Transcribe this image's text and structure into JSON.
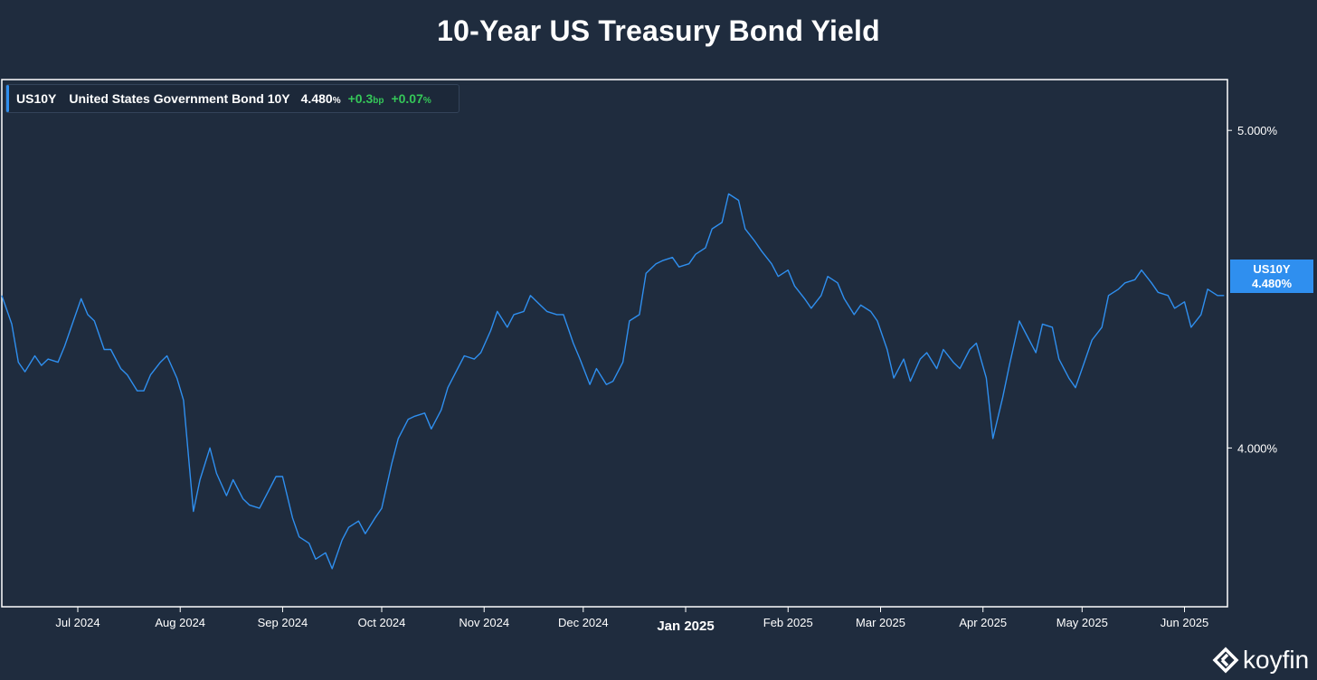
{
  "title": "10-Year US Treasury Bond Yield",
  "legend": {
    "symbol": "US10Y",
    "name": "United States Government Bond 10Y",
    "value": "4.480",
    "value_unit": "%",
    "change_bp": "+0.3",
    "change_bp_unit": "bp",
    "change_pct": "+0.07",
    "change_pct_unit": "%"
  },
  "price_tag": {
    "symbol": "US10Y",
    "value": "4.480%"
  },
  "brand": "koyfin",
  "colors": {
    "line": "#2f8fef",
    "positive": "#35c759",
    "background": "#1f2c3e",
    "frame": "#ffffff"
  },
  "chart_data": {
    "type": "line",
    "title": "10-Year US Treasury Bond Yield",
    "xlabel": "",
    "ylabel": "",
    "ylim": [
      3.5,
      5.16
    ],
    "y_ticks": [
      "5.000%",
      "4.000%"
    ],
    "y_tick_values": [
      5.0,
      4.0
    ],
    "x_ticks": [
      "Jul 2024",
      "Aug 2024",
      "Sep 2024",
      "Oct 2024",
      "Nov 2024",
      "Dec 2024",
      "Jan 2025",
      "Feb 2025",
      "Mar 2025",
      "Apr 2025",
      "May 2025",
      "Jun 2025"
    ],
    "x_tick_dates": [
      "2024-07-01",
      "2024-08-01",
      "2024-09-01",
      "2024-10-01",
      "2024-11-01",
      "2024-12-01",
      "2025-01-01",
      "2025-02-01",
      "2025-03-01",
      "2025-04-01",
      "2025-05-01",
      "2025-06-01"
    ],
    "x_range": [
      "2024-06-08",
      "2025-06-14"
    ],
    "bold_tick": "Jan 2025",
    "grid": false,
    "series": [
      {
        "name": "US10Y",
        "x": [
          "2024-06-08",
          "2024-06-11",
          "2024-06-13",
          "2024-06-15",
          "2024-06-18",
          "2024-06-20",
          "2024-06-22",
          "2024-06-25",
          "2024-06-27",
          "2024-06-29",
          "2024-07-02",
          "2024-07-04",
          "2024-07-06",
          "2024-07-09",
          "2024-07-11",
          "2024-07-14",
          "2024-07-16",
          "2024-07-19",
          "2024-07-21",
          "2024-07-23",
          "2024-07-26",
          "2024-07-28",
          "2024-07-31",
          "2024-08-02",
          "2024-08-05",
          "2024-08-07",
          "2024-08-10",
          "2024-08-12",
          "2024-08-15",
          "2024-08-17",
          "2024-08-20",
          "2024-08-22",
          "2024-08-25",
          "2024-08-27",
          "2024-08-30",
          "2024-09-01",
          "2024-09-04",
          "2024-09-06",
          "2024-09-09",
          "2024-09-11",
          "2024-09-14",
          "2024-09-16",
          "2024-09-19",
          "2024-09-21",
          "2024-09-24",
          "2024-09-26",
          "2024-09-29",
          "2024-10-01",
          "2024-10-04",
          "2024-10-06",
          "2024-10-09",
          "2024-10-11",
          "2024-10-14",
          "2024-10-16",
          "2024-10-19",
          "2024-10-21",
          "2024-10-24",
          "2024-10-26",
          "2024-10-29",
          "2024-10-31",
          "2024-11-03",
          "2024-11-05",
          "2024-11-08",
          "2024-11-10",
          "2024-11-13",
          "2024-11-15",
          "2024-11-18",
          "2024-11-20",
          "2024-11-23",
          "2024-11-25",
          "2024-11-28",
          "2024-11-30",
          "2024-12-03",
          "2024-12-05",
          "2024-12-08",
          "2024-12-10",
          "2024-12-13",
          "2024-12-15",
          "2024-12-18",
          "2024-12-20",
          "2024-12-23",
          "2024-12-25",
          "2024-12-28",
          "2024-12-30",
          "2025-01-02",
          "2025-01-04",
          "2025-01-07",
          "2025-01-09",
          "2025-01-12",
          "2025-01-14",
          "2025-01-17",
          "2025-01-19",
          "2025-01-22",
          "2025-01-24",
          "2025-01-27",
          "2025-01-29",
          "2025-02-01",
          "2025-02-03",
          "2025-02-06",
          "2025-02-08",
          "2025-02-11",
          "2025-02-13",
          "2025-02-16",
          "2025-02-18",
          "2025-02-21",
          "2025-02-23",
          "2025-02-26",
          "2025-02-28",
          "2025-03-03",
          "2025-03-05",
          "2025-03-08",
          "2025-03-10",
          "2025-03-13",
          "2025-03-15",
          "2025-03-18",
          "2025-03-20",
          "2025-03-23",
          "2025-03-25",
          "2025-03-28",
          "2025-03-30",
          "2025-04-02",
          "2025-04-04",
          "2025-04-07",
          "2025-04-09",
          "2025-04-12",
          "2025-04-14",
          "2025-04-17",
          "2025-04-19",
          "2025-04-22",
          "2025-04-24",
          "2025-04-27",
          "2025-04-29",
          "2025-05-02",
          "2025-05-04",
          "2025-05-07",
          "2025-05-09",
          "2025-05-12",
          "2025-05-14",
          "2025-05-17",
          "2025-05-19",
          "2025-05-22",
          "2025-05-24",
          "2025-05-27",
          "2025-05-29",
          "2025-06-01",
          "2025-06-03",
          "2025-06-06",
          "2025-06-08",
          "2025-06-11",
          "2025-06-13"
        ],
        "values": [
          4.48,
          4.39,
          4.27,
          4.24,
          4.29,
          4.26,
          4.28,
          4.27,
          4.32,
          4.38,
          4.47,
          4.42,
          4.4,
          4.31,
          4.31,
          4.25,
          4.23,
          4.18,
          4.18,
          4.23,
          4.27,
          4.29,
          4.22,
          4.15,
          3.8,
          3.9,
          4.0,
          3.92,
          3.85,
          3.9,
          3.84,
          3.82,
          3.81,
          3.85,
          3.91,
          3.91,
          3.78,
          3.72,
          3.7,
          3.65,
          3.67,
          3.62,
          3.71,
          3.75,
          3.77,
          3.73,
          3.78,
          3.81,
          3.95,
          4.03,
          4.09,
          4.1,
          4.11,
          4.06,
          4.12,
          4.19,
          4.25,
          4.29,
          4.28,
          4.3,
          4.37,
          4.43,
          4.38,
          4.42,
          4.43,
          4.48,
          4.45,
          4.43,
          4.42,
          4.42,
          4.33,
          4.28,
          4.2,
          4.25,
          4.2,
          4.21,
          4.27,
          4.4,
          4.42,
          4.55,
          4.58,
          4.59,
          4.6,
          4.57,
          4.58,
          4.61,
          4.63,
          4.69,
          4.71,
          4.8,
          4.78,
          4.69,
          4.65,
          4.62,
          4.58,
          4.54,
          4.56,
          4.51,
          4.47,
          4.44,
          4.48,
          4.54,
          4.52,
          4.47,
          4.42,
          4.45,
          4.43,
          4.4,
          4.31,
          4.22,
          4.28,
          4.21,
          4.28,
          4.3,
          4.25,
          4.31,
          4.27,
          4.25,
          4.31,
          4.33,
          4.22,
          4.03,
          4.16,
          4.26,
          4.4,
          4.36,
          4.3,
          4.39,
          4.38,
          4.28,
          4.22,
          4.19,
          4.28,
          4.34,
          4.38,
          4.48,
          4.5,
          4.52,
          4.53,
          4.56,
          4.52,
          4.49,
          4.48,
          4.44,
          4.46,
          4.38,
          4.42,
          4.5,
          4.48,
          4.48
        ]
      }
    ]
  }
}
